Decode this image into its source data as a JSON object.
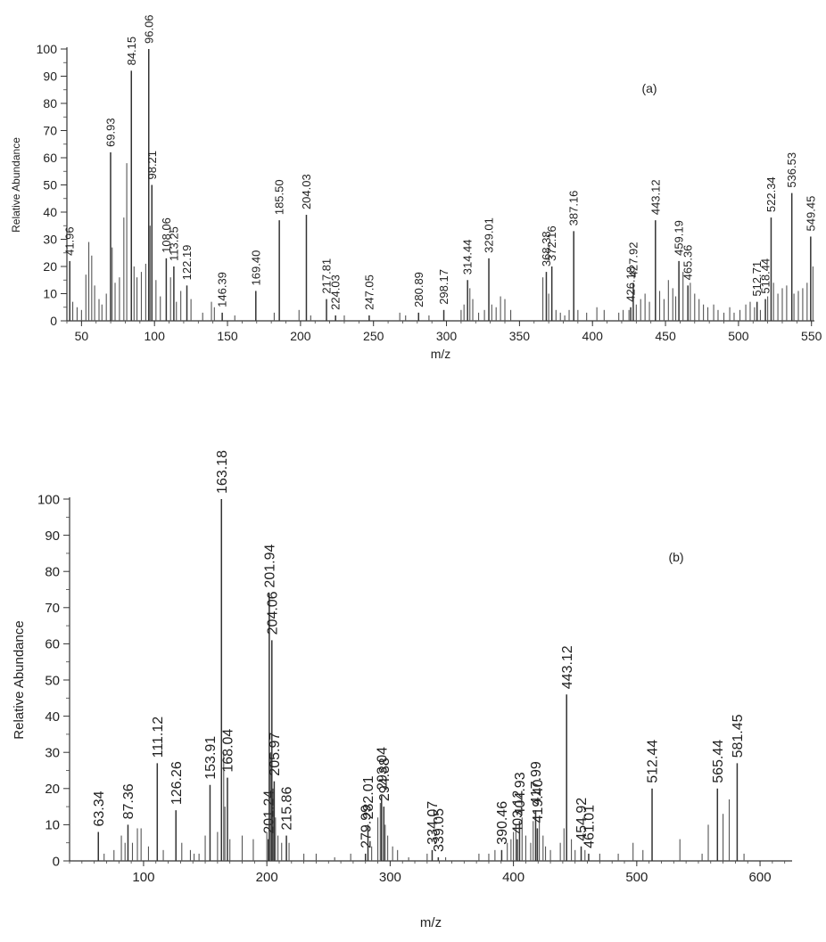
{
  "chart_data": [
    {
      "type": "bar",
      "panel_label": "(a)",
      "xlabel": "m/z",
      "ylabel": "Relative Abundance",
      "xlim": [
        40,
        552
      ],
      "ylim": [
        0,
        100
      ],
      "xticks": [
        50,
        100,
        150,
        200,
        250,
        300,
        350,
        400,
        450,
        500,
        550
      ],
      "yticks": [
        0,
        10,
        20,
        30,
        40,
        50,
        60,
        70,
        80,
        90,
        100
      ],
      "labeled_peaks": [
        {
          "mz": 41.96,
          "label": "41.96",
          "y": 22
        },
        {
          "mz": 69.93,
          "label": "69.93",
          "y": 62
        },
        {
          "mz": 84.15,
          "label": "84.15",
          "y": 92
        },
        {
          "mz": 96.06,
          "label": "96.06",
          "y": 100
        },
        {
          "mz": 98.21,
          "label": "98.21",
          "y": 50
        },
        {
          "mz": 108.06,
          "label": "108.06",
          "y": 23
        },
        {
          "mz": 113.25,
          "label": "113.25",
          "y": 20
        },
        {
          "mz": 122.19,
          "label": "122.19",
          "y": 13
        },
        {
          "mz": 146.39,
          "label": "146.39",
          "y": 3
        },
        {
          "mz": 169.4,
          "label": "169.40",
          "y": 11
        },
        {
          "mz": 185.5,
          "label": "185.50",
          "y": 37
        },
        {
          "mz": 204.03,
          "label": "204.03",
          "y": 39
        },
        {
          "mz": 217.81,
          "label": "217.81",
          "y": 8
        },
        {
          "mz": 224.03,
          "label": "224.03",
          "y": 2
        },
        {
          "mz": 247.05,
          "label": "247.05",
          "y": 2
        },
        {
          "mz": 280.89,
          "label": "280.89",
          "y": 3
        },
        {
          "mz": 298.17,
          "label": "298.17",
          "y": 4
        },
        {
          "mz": 314.44,
          "label": "314.44",
          "y": 15
        },
        {
          "mz": 329.01,
          "label": "329.01",
          "y": 23
        },
        {
          "mz": 368.38,
          "label": "368.38",
          "y": 18
        },
        {
          "mz": 372.16,
          "label": "372.16",
          "y": 20
        },
        {
          "mz": 387.16,
          "label": "387.16",
          "y": 33
        },
        {
          "mz": 426.18,
          "label": "426.18",
          "y": 5
        },
        {
          "mz": 427.92,
          "label": "427.92",
          "y": 14
        },
        {
          "mz": 443.12,
          "label": "443.12",
          "y": 37
        },
        {
          "mz": 459.19,
          "label": "459.19",
          "y": 22
        },
        {
          "mz": 465.36,
          "label": "465.36",
          "y": 13
        },
        {
          "mz": 512.71,
          "label": "512.71",
          "y": 7
        },
        {
          "mz": 518.44,
          "label": "518.44",
          "y": 8
        },
        {
          "mz": 522.34,
          "label": "522.34",
          "y": 38
        },
        {
          "mz": 536.53,
          "label": "536.53",
          "y": 47
        },
        {
          "mz": 549.45,
          "label": "549.45",
          "y": 31
        }
      ],
      "minor_peaks": [
        {
          "mz": 44,
          "y": 7
        },
        {
          "mz": 47,
          "y": 5
        },
        {
          "mz": 50,
          "y": 4
        },
        {
          "mz": 53,
          "y": 17
        },
        {
          "mz": 55,
          "y": 29
        },
        {
          "mz": 57,
          "y": 24
        },
        {
          "mz": 59,
          "y": 13
        },
        {
          "mz": 62,
          "y": 8
        },
        {
          "mz": 64,
          "y": 6
        },
        {
          "mz": 67,
          "y": 10
        },
        {
          "mz": 71,
          "y": 27
        },
        {
          "mz": 73,
          "y": 14
        },
        {
          "mz": 76,
          "y": 16
        },
        {
          "mz": 79,
          "y": 38
        },
        {
          "mz": 81,
          "y": 58
        },
        {
          "mz": 86,
          "y": 20
        },
        {
          "mz": 88,
          "y": 16
        },
        {
          "mz": 91,
          "y": 18
        },
        {
          "mz": 94,
          "y": 21
        },
        {
          "mz": 97,
          "y": 35
        },
        {
          "mz": 101,
          "y": 15
        },
        {
          "mz": 104,
          "y": 9
        },
        {
          "mz": 111,
          "y": 16
        },
        {
          "mz": 115,
          "y": 7
        },
        {
          "mz": 118,
          "y": 11
        },
        {
          "mz": 125,
          "y": 8
        },
        {
          "mz": 133,
          "y": 3
        },
        {
          "mz": 139,
          "y": 7
        },
        {
          "mz": 141,
          "y": 5
        },
        {
          "mz": 155,
          "y": 2
        },
        {
          "mz": 182,
          "y": 3
        },
        {
          "mz": 199,
          "y": 4
        },
        {
          "mz": 207,
          "y": 2
        },
        {
          "mz": 230,
          "y": 2
        },
        {
          "mz": 268,
          "y": 3
        },
        {
          "mz": 272,
          "y": 2
        },
        {
          "mz": 288,
          "y": 2
        },
        {
          "mz": 310,
          "y": 4
        },
        {
          "mz": 312,
          "y": 6
        },
        {
          "mz": 316,
          "y": 12
        },
        {
          "mz": 318,
          "y": 8
        },
        {
          "mz": 322,
          "y": 3
        },
        {
          "mz": 326,
          "y": 4
        },
        {
          "mz": 331,
          "y": 6
        },
        {
          "mz": 334,
          "y": 5
        },
        {
          "mz": 337,
          "y": 9
        },
        {
          "mz": 340,
          "y": 8
        },
        {
          "mz": 344,
          "y": 4
        },
        {
          "mz": 366,
          "y": 16
        },
        {
          "mz": 370,
          "y": 10
        },
        {
          "mz": 375,
          "y": 4
        },
        {
          "mz": 378,
          "y": 3
        },
        {
          "mz": 381,
          "y": 2
        },
        {
          "mz": 384,
          "y": 4
        },
        {
          "mz": 390,
          "y": 4
        },
        {
          "mz": 396,
          "y": 3
        },
        {
          "mz": 403,
          "y": 5
        },
        {
          "mz": 408,
          "y": 4
        },
        {
          "mz": 418,
          "y": 3
        },
        {
          "mz": 421,
          "y": 4
        },
        {
          "mz": 425,
          "y": 4
        },
        {
          "mz": 430,
          "y": 6
        },
        {
          "mz": 433,
          "y": 8
        },
        {
          "mz": 436,
          "y": 10
        },
        {
          "mz": 439,
          "y": 7
        },
        {
          "mz": 446,
          "y": 11
        },
        {
          "mz": 449,
          "y": 8
        },
        {
          "mz": 452,
          "y": 15
        },
        {
          "mz": 455,
          "y": 12
        },
        {
          "mz": 457,
          "y": 9
        },
        {
          "mz": 462,
          "y": 18
        },
        {
          "mz": 467,
          "y": 14
        },
        {
          "mz": 470,
          "y": 10
        },
        {
          "mz": 473,
          "y": 8
        },
        {
          "mz": 476,
          "y": 6
        },
        {
          "mz": 479,
          "y": 5
        },
        {
          "mz": 483,
          "y": 6
        },
        {
          "mz": 486,
          "y": 4
        },
        {
          "mz": 490,
          "y": 3
        },
        {
          "mz": 494,
          "y": 5
        },
        {
          "mz": 497,
          "y": 3
        },
        {
          "mz": 501,
          "y": 4
        },
        {
          "mz": 505,
          "y": 6
        },
        {
          "mz": 508,
          "y": 7
        },
        {
          "mz": 511,
          "y": 5
        },
        {
          "mz": 515,
          "y": 4
        },
        {
          "mz": 520,
          "y": 9
        },
        {
          "mz": 524,
          "y": 14
        },
        {
          "mz": 527,
          "y": 10
        },
        {
          "mz": 530,
          "y": 12
        },
        {
          "mz": 533,
          "y": 13
        },
        {
          "mz": 538,
          "y": 10
        },
        {
          "mz": 541,
          "y": 11
        },
        {
          "mz": 544,
          "y": 12
        },
        {
          "mz": 547,
          "y": 14
        },
        {
          "mz": 551,
          "y": 20
        }
      ]
    },
    {
      "type": "bar",
      "panel_label": "(b)",
      "xlabel": "m/z",
      "ylabel": "Relative Abundance",
      "xlim": [
        40,
        626
      ],
      "ylim": [
        0,
        100
      ],
      "xticks": [
        100,
        200,
        300,
        400,
        500,
        600
      ],
      "yticks": [
        0,
        10,
        20,
        30,
        40,
        50,
        60,
        70,
        80,
        90,
        100
      ],
      "labeled_peaks": [
        {
          "mz": 63.34,
          "label": "63.34",
          "y": 8
        },
        {
          "mz": 87.36,
          "label": "87.36",
          "y": 10
        },
        {
          "mz": 111.12,
          "label": "111.12",
          "y": 27
        },
        {
          "mz": 126.26,
          "label": "126.26",
          "y": 14
        },
        {
          "mz": 153.91,
          "label": "153.91",
          "y": 21
        },
        {
          "mz": 163.18,
          "label": "163.18",
          "y": 100
        },
        {
          "mz": 168.04,
          "label": "168.04",
          "y": 23
        },
        {
          "mz": 201.24,
          "label": "201.24",
          "y": 6
        },
        {
          "mz": 201.94,
          "label": "201.94",
          "y": 74
        },
        {
          "mz": 204.06,
          "label": "204.06",
          "y": 61
        },
        {
          "mz": 205.97,
          "label": "205.97",
          "y": 22
        },
        {
          "mz": 215.86,
          "label": "215.86",
          "y": 7
        },
        {
          "mz": 279.99,
          "label": "279.99",
          "y": 2
        },
        {
          "mz": 282.01,
          "label": "282.01",
          "y": 10
        },
        {
          "mz": 293.04,
          "label": "293.04",
          "y": 18
        },
        {
          "mz": 294.88,
          "label": "294.88",
          "y": 15
        },
        {
          "mz": 334.07,
          "label": "334.07",
          "y": 3
        },
        {
          "mz": 339.05,
          "label": "339.05",
          "y": 1
        },
        {
          "mz": 390.46,
          "label": "390.46",
          "y": 3
        },
        {
          "mz": 403.12,
          "label": "403.12",
          "y": 6
        },
        {
          "mz": 404.93,
          "label": "404.93",
          "y": 11
        },
        {
          "mz": 417.99,
          "label": "417.99",
          "y": 14
        },
        {
          "mz": 419.4,
          "label": "419.40",
          "y": 9
        },
        {
          "mz": 443.12,
          "label": "443.12",
          "y": 46
        },
        {
          "mz": 454.92,
          "label": "454.92",
          "y": 4
        },
        {
          "mz": 461.01,
          "label": "461.01",
          "y": 2
        },
        {
          "mz": 512.44,
          "label": "512.44",
          "y": 20
        },
        {
          "mz": 565.44,
          "label": "565.44",
          "y": 20
        },
        {
          "mz": 581.45,
          "label": "581.45",
          "y": 27
        }
      ],
      "minor_peaks": [
        {
          "mz": 68,
          "y": 2
        },
        {
          "mz": 76,
          "y": 3
        },
        {
          "mz": 82,
          "y": 7
        },
        {
          "mz": 85,
          "y": 5
        },
        {
          "mz": 91,
          "y": 5
        },
        {
          "mz": 95,
          "y": 9
        },
        {
          "mz": 98,
          "y": 9
        },
        {
          "mz": 104,
          "y": 4
        },
        {
          "mz": 116,
          "y": 3
        },
        {
          "mz": 131,
          "y": 5
        },
        {
          "mz": 138,
          "y": 3
        },
        {
          "mz": 141,
          "y": 2
        },
        {
          "mz": 145,
          "y": 2
        },
        {
          "mz": 150,
          "y": 7
        },
        {
          "mz": 160,
          "y": 8
        },
        {
          "mz": 165,
          "y": 30
        },
        {
          "mz": 166,
          "y": 15
        },
        {
          "mz": 170,
          "y": 6
        },
        {
          "mz": 180,
          "y": 7
        },
        {
          "mz": 189,
          "y": 6
        },
        {
          "mz": 200,
          "y": 8
        },
        {
          "mz": 203,
          "y": 30
        },
        {
          "mz": 205,
          "y": 20
        },
        {
          "mz": 207,
          "y": 12
        },
        {
          "mz": 209,
          "y": 7
        },
        {
          "mz": 212,
          "y": 5
        },
        {
          "mz": 218,
          "y": 5
        },
        {
          "mz": 230,
          "y": 2
        },
        {
          "mz": 240,
          "y": 2
        },
        {
          "mz": 255,
          "y": 1
        },
        {
          "mz": 268,
          "y": 2
        },
        {
          "mz": 285,
          "y": 4
        },
        {
          "mz": 290,
          "y": 12
        },
        {
          "mz": 292,
          "y": 16
        },
        {
          "mz": 296,
          "y": 10
        },
        {
          "mz": 298,
          "y": 7
        },
        {
          "mz": 302,
          "y": 4
        },
        {
          "mz": 306,
          "y": 3
        },
        {
          "mz": 315,
          "y": 1
        },
        {
          "mz": 330,
          "y": 2
        },
        {
          "mz": 345,
          "y": 1
        },
        {
          "mz": 372,
          "y": 2
        },
        {
          "mz": 380,
          "y": 2
        },
        {
          "mz": 385,
          "y": 3
        },
        {
          "mz": 395,
          "y": 5
        },
        {
          "mz": 398,
          "y": 6
        },
        {
          "mz": 400,
          "y": 8
        },
        {
          "mz": 402,
          "y": 10
        },
        {
          "mz": 407,
          "y": 12
        },
        {
          "mz": 410,
          "y": 7
        },
        {
          "mz": 414,
          "y": 5
        },
        {
          "mz": 416,
          "y": 11
        },
        {
          "mz": 421,
          "y": 12
        },
        {
          "mz": 424,
          "y": 7
        },
        {
          "mz": 426,
          "y": 4
        },
        {
          "mz": 430,
          "y": 3
        },
        {
          "mz": 438,
          "y": 5
        },
        {
          "mz": 441,
          "y": 9
        },
        {
          "mz": 447,
          "y": 6
        },
        {
          "mz": 450,
          "y": 3
        },
        {
          "mz": 458,
          "y": 3
        },
        {
          "mz": 470,
          "y": 2
        },
        {
          "mz": 485,
          "y": 2
        },
        {
          "mz": 497,
          "y": 5
        },
        {
          "mz": 505,
          "y": 3
        },
        {
          "mz": 535,
          "y": 6
        },
        {
          "mz": 553,
          "y": 2
        },
        {
          "mz": 558,
          "y": 10
        },
        {
          "mz": 570,
          "y": 13
        },
        {
          "mz": 575,
          "y": 17
        },
        {
          "mz": 587,
          "y": 2
        }
      ]
    }
  ]
}
